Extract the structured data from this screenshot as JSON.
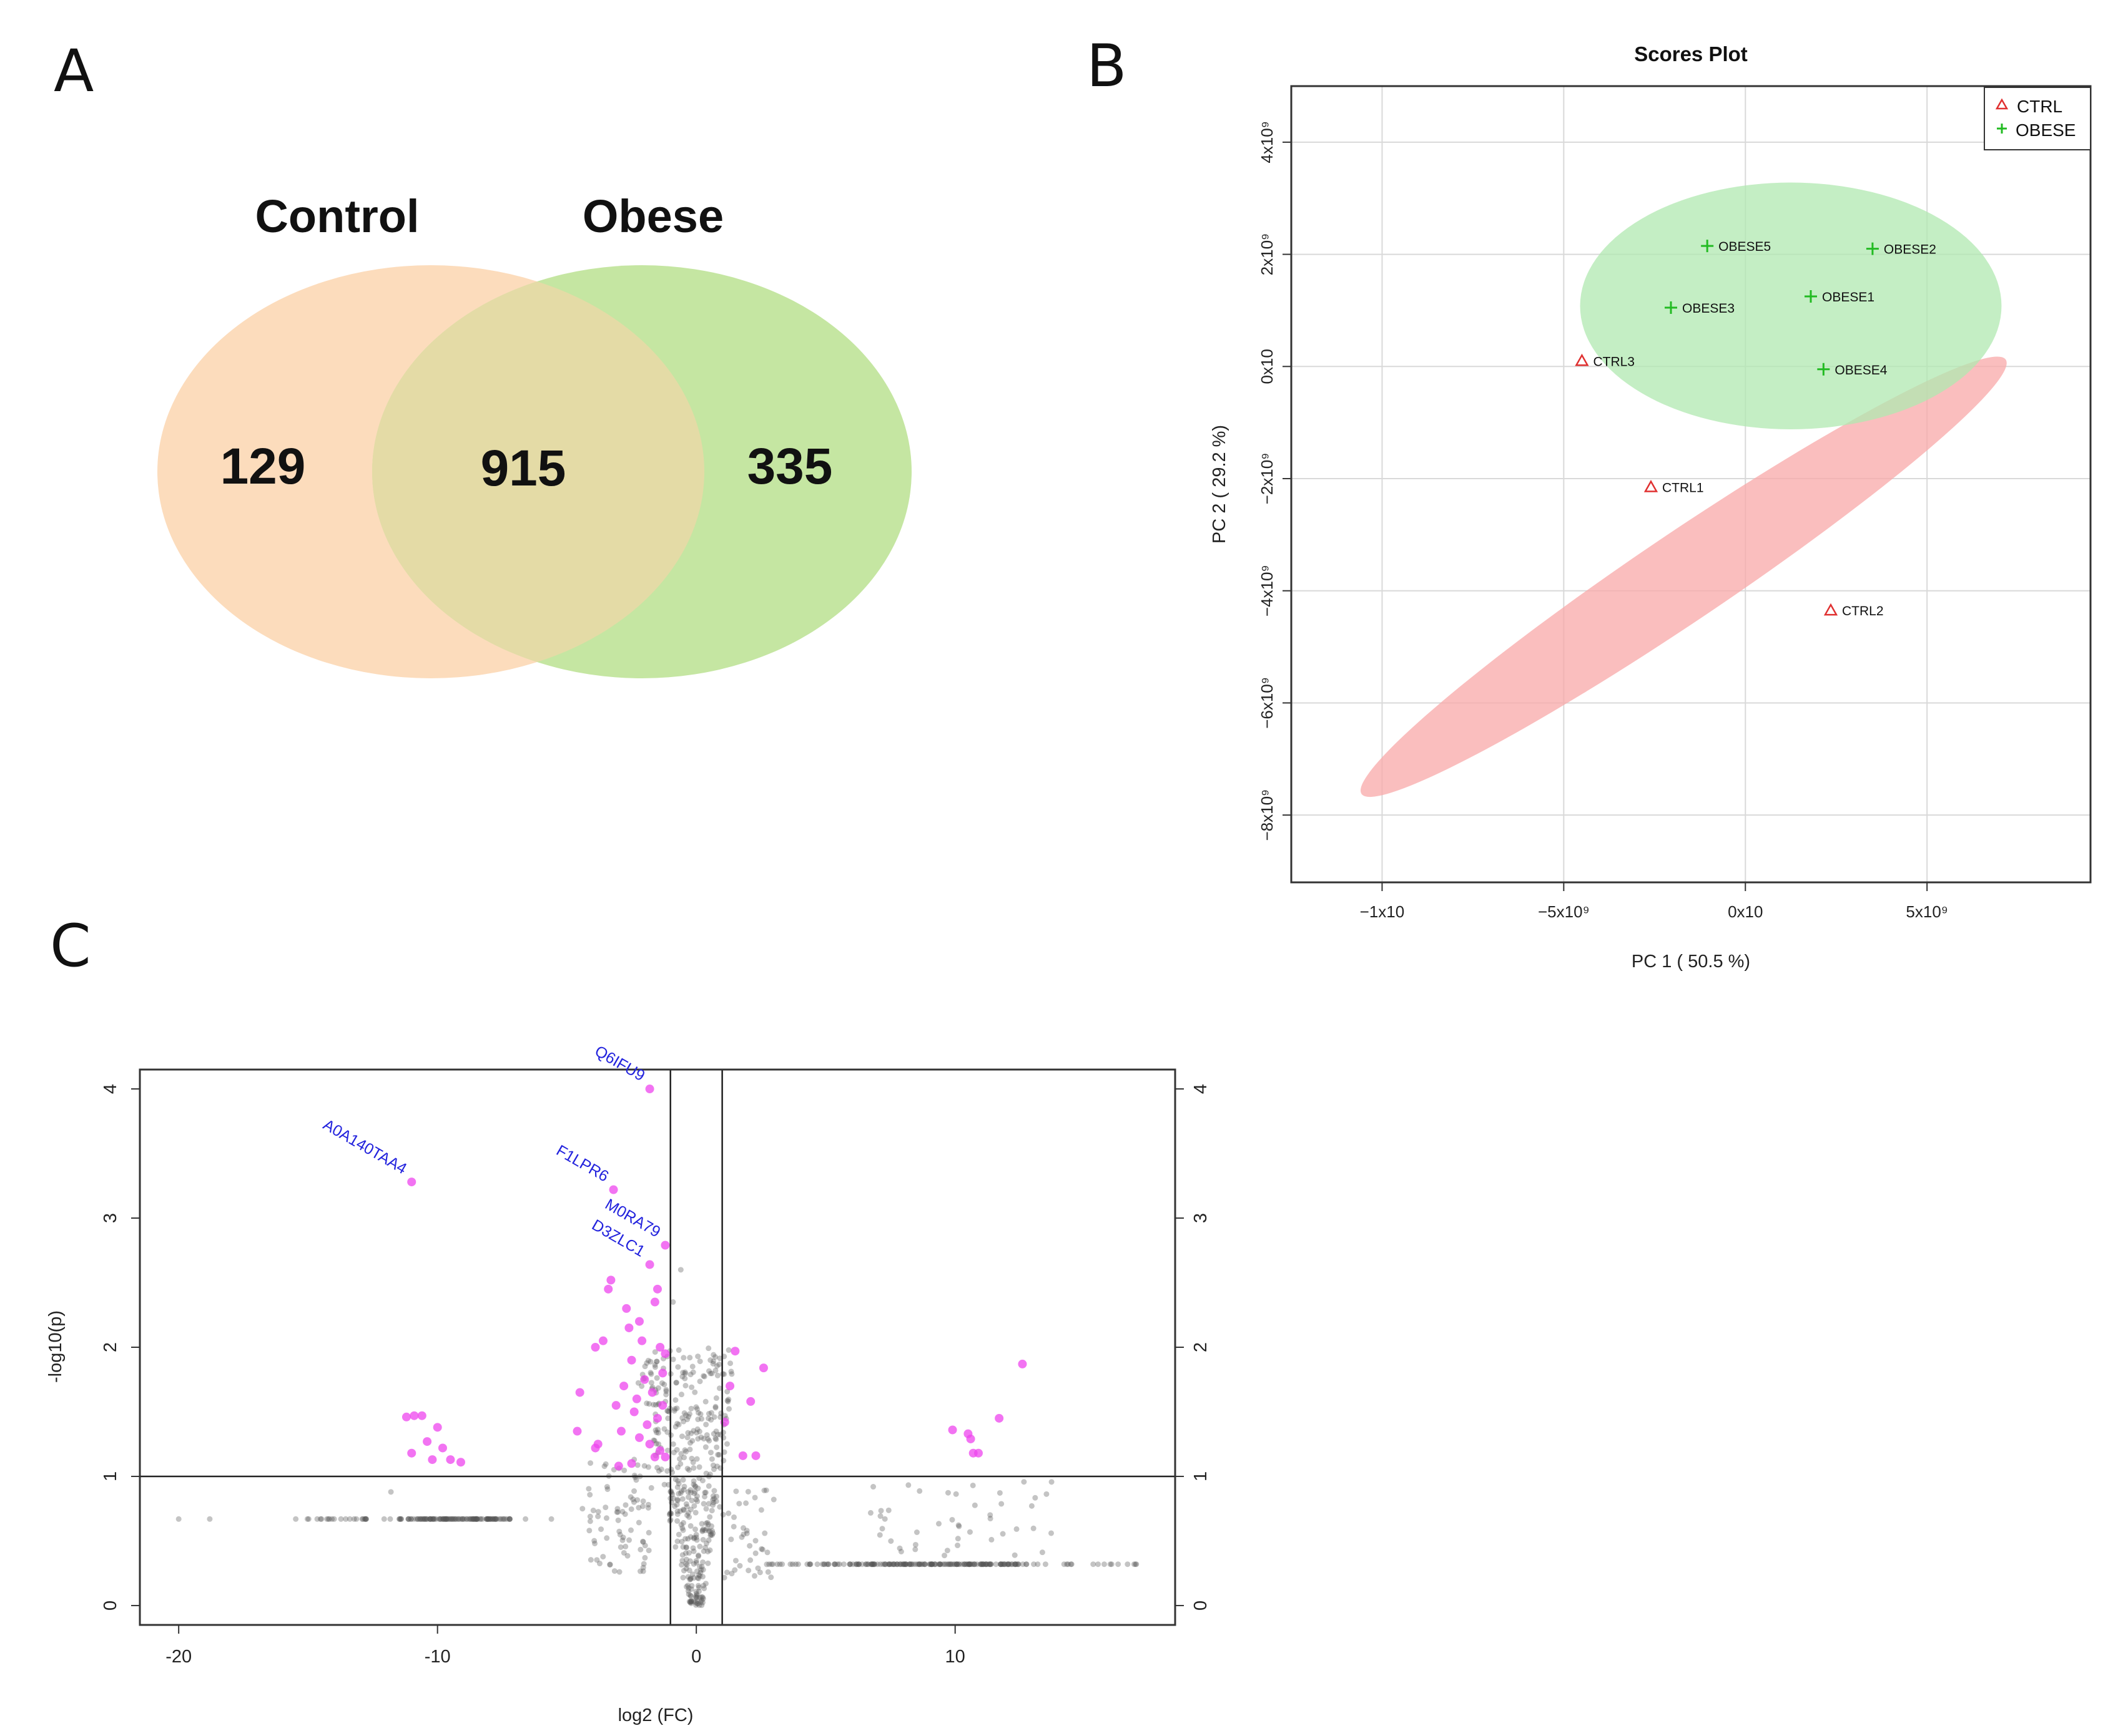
{
  "panels": {
    "a": "A",
    "b": "B",
    "c": "C"
  },
  "venn": {
    "set1": {
      "label": "Control",
      "count": "129",
      "color": "#fcdcbc"
    },
    "set2": {
      "label": "Obese",
      "count": "335",
      "color": "#c5e6a2"
    },
    "overlap": {
      "count": "915",
      "color": "#e4dba6"
    }
  },
  "pca": {
    "title": "Scores Plot",
    "xlabel": "PC 1 ( 50.5 %)",
    "ylabel": "PC 2 ( 29.2 %)",
    "xticks": [
      {
        "v": -10,
        "label": "−1x10"
      },
      {
        "v": -5,
        "label": "−5x10⁹"
      },
      {
        "v": 0,
        "label": "0x10"
      },
      {
        "v": 5,
        "label": "5x10⁹"
      }
    ],
    "yticks": [
      {
        "v": 4,
        "label": "4x10⁹"
      },
      {
        "v": 2,
        "label": "2x10⁹"
      },
      {
        "v": 0,
        "label": "0x10"
      },
      {
        "v": -2,
        "label": "−2x10⁹"
      },
      {
        "v": -4,
        "label": "−4x10⁹"
      },
      {
        "v": -6,
        "label": "−6x10⁹"
      },
      {
        "v": -8,
        "label": "−8x10⁹"
      }
    ],
    "legend": [
      {
        "name": "CTRL",
        "marker": "triangle",
        "color": "#e03030"
      },
      {
        "name": "OBESE",
        "marker": "plus",
        "color": "#22bb22"
      }
    ],
    "ellipse_colors": {
      "ctrl": "#f8a8a8",
      "obese": "#b0e8b0"
    }
  },
  "volcano": {
    "xlabel": "log2 (FC)",
    "ylabel": "-log10(p)",
    "xticks": [
      {
        "v": -20,
        "label": "-20"
      },
      {
        "v": -10,
        "label": "-10"
      },
      {
        "v": 0,
        "label": "0"
      },
      {
        "v": 10,
        "label": "10"
      }
    ],
    "yticks": [
      {
        "v": 0,
        "label": "0"
      },
      {
        "v": 1,
        "label": "1"
      },
      {
        "v": 2,
        "label": "2"
      },
      {
        "v": 3,
        "label": "3"
      },
      {
        "v": 4,
        "label": "4"
      }
    ],
    "labels": [
      {
        "text": "Q6IFU9",
        "x": -1.8,
        "y": 4.0
      },
      {
        "text": "A0A140TAA4",
        "x": -11.0,
        "y": 3.28
      },
      {
        "text": "F1LPR6",
        "x": -3.2,
        "y": 3.22
      },
      {
        "text": "M0RA79",
        "x": -1.2,
        "y": 2.79
      },
      {
        "text": "D3ZLC1",
        "x": -1.8,
        "y": 2.64
      }
    ],
    "colors": {
      "significant": "#ee44ee",
      "nonsig": "#555555",
      "label": "#2222dd"
    }
  },
  "chart_data": [
    {
      "type": "venn",
      "sets": [
        "Control",
        "Obese"
      ],
      "only_control": 129,
      "intersection": 915,
      "only_obese": 335
    },
    {
      "type": "scatter",
      "title": "Scores Plot",
      "xlabel": "PC 1 ( 50.5 %)",
      "ylabel": "PC 2 ( 29.2 %)",
      "units_note": "values in units of 10^9",
      "xlim": [
        -12.5,
        9.5
      ],
      "ylim": [
        -9.2,
        5.0
      ],
      "series": [
        {
          "name": "CTRL",
          "points": [
            {
              "label": "CTRL1",
              "x": -2.6,
              "y": -2.15
            },
            {
              "label": "CTRL2",
              "x": 2.35,
              "y": -4.35
            },
            {
              "label": "CTRL3",
              "x": -4.5,
              "y": 0.1
            }
          ]
        },
        {
          "name": "OBESE",
          "points": [
            {
              "label": "OBESE1",
              "x": 1.8,
              "y": 1.25
            },
            {
              "label": "OBESE2",
              "x": 3.5,
              "y": 2.1
            },
            {
              "label": "OBESE3",
              "x": -2.05,
              "y": 1.05
            },
            {
              "label": "OBESE4",
              "x": 2.15,
              "y": -0.05
            },
            {
              "label": "OBESE5",
              "x": -1.05,
              "y": 2.15
            }
          ]
        }
      ],
      "ellipses": [
        {
          "group": "CTRL",
          "cx": -1.7,
          "cy": -3.75,
          "rx": 11.5,
          "ry": 1.3,
          "angle_deg": -34
        },
        {
          "group": "OBESE",
          "cx": 1.25,
          "cy": 1.08,
          "rx": 5.8,
          "ry": 2.2,
          "angle_deg": 0
        }
      ]
    },
    {
      "type": "scatter",
      "subtype": "volcano",
      "xlabel": "log2 (FC)",
      "ylabel": "-log10(p)",
      "xlim": [
        -21.5,
        18.5
      ],
      "ylim": [
        -0.15,
        4.15
      ],
      "thresholds": {
        "x": [
          -1,
          1
        ],
        "y": 1
      },
      "significant": [
        {
          "x": -1.8,
          "y": 4.0
        },
        {
          "x": -11.0,
          "y": 3.28
        },
        {
          "x": -3.2,
          "y": 3.22
        },
        {
          "x": -1.2,
          "y": 2.79
        },
        {
          "x": -1.8,
          "y": 2.64
        },
        {
          "x": -3.3,
          "y": 2.52
        },
        {
          "x": -3.4,
          "y": 2.45
        },
        {
          "x": -2.7,
          "y": 2.3
        },
        {
          "x": -1.5,
          "y": 2.45
        },
        {
          "x": -1.6,
          "y": 2.35
        },
        {
          "x": -2.2,
          "y": 2.2
        },
        {
          "x": -3.6,
          "y": 2.05
        },
        {
          "x": -3.9,
          "y": 2.0
        },
        {
          "x": -2.6,
          "y": 2.15
        },
        {
          "x": -2.1,
          "y": 2.05
        },
        {
          "x": -1.4,
          "y": 2.0
        },
        {
          "x": -1.2,
          "y": 1.95
        },
        {
          "x": -2.5,
          "y": 1.9
        },
        {
          "x": -1.3,
          "y": 1.8
        },
        {
          "x": -2.0,
          "y": 1.75
        },
        {
          "x": -2.8,
          "y": 1.7
        },
        {
          "x": -1.7,
          "y": 1.65
        },
        {
          "x": -3.1,
          "y": 1.55
        },
        {
          "x": -2.4,
          "y": 1.5
        },
        {
          "x": -1.5,
          "y": 1.45
        },
        {
          "x": -4.5,
          "y": 1.65
        },
        {
          "x": -4.6,
          "y": 1.35
        },
        {
          "x": -3.8,
          "y": 1.25
        },
        {
          "x": -3.9,
          "y": 1.22
        },
        {
          "x": -2.9,
          "y": 1.35
        },
        {
          "x": -2.2,
          "y": 1.3
        },
        {
          "x": -1.8,
          "y": 1.25
        },
        {
          "x": -1.4,
          "y": 1.2
        },
        {
          "x": -1.6,
          "y": 1.15
        },
        {
          "x": -2.5,
          "y": 1.1
        },
        {
          "x": -3.0,
          "y": 1.08
        },
        {
          "x": -1.2,
          "y": 1.15
        },
        {
          "x": -1.9,
          "y": 1.4
        },
        {
          "x": -2.3,
          "y": 1.6
        },
        {
          "x": -1.3,
          "y": 1.55
        },
        {
          "x": -10.9,
          "y": 1.47
        },
        {
          "x": -10.6,
          "y": 1.47
        },
        {
          "x": -11.2,
          "y": 1.46
        },
        {
          "x": -10.0,
          "y": 1.38
        },
        {
          "x": -10.4,
          "y": 1.27
        },
        {
          "x": -9.8,
          "y": 1.22
        },
        {
          "x": -11.0,
          "y": 1.18
        },
        {
          "x": -10.2,
          "y": 1.13
        },
        {
          "x": -9.5,
          "y": 1.13
        },
        {
          "x": -9.1,
          "y": 1.11
        },
        {
          "x": 1.5,
          "y": 1.97
        },
        {
          "x": 2.6,
          "y": 1.84
        },
        {
          "x": 1.3,
          "y": 1.7
        },
        {
          "x": 2.1,
          "y": 1.58
        },
        {
          "x": 1.1,
          "y": 1.42
        },
        {
          "x": 1.8,
          "y": 1.16
        },
        {
          "x": 2.3,
          "y": 1.16
        },
        {
          "x": 9.9,
          "y": 1.36
        },
        {
          "x": 10.5,
          "y": 1.33
        },
        {
          "x": 10.6,
          "y": 1.29
        },
        {
          "x": 10.7,
          "y": 1.18
        },
        {
          "x": 10.9,
          "y": 1.18
        },
        {
          "x": 11.7,
          "y": 1.45
        },
        {
          "x": 12.6,
          "y": 1.87
        }
      ]
    }
  ]
}
